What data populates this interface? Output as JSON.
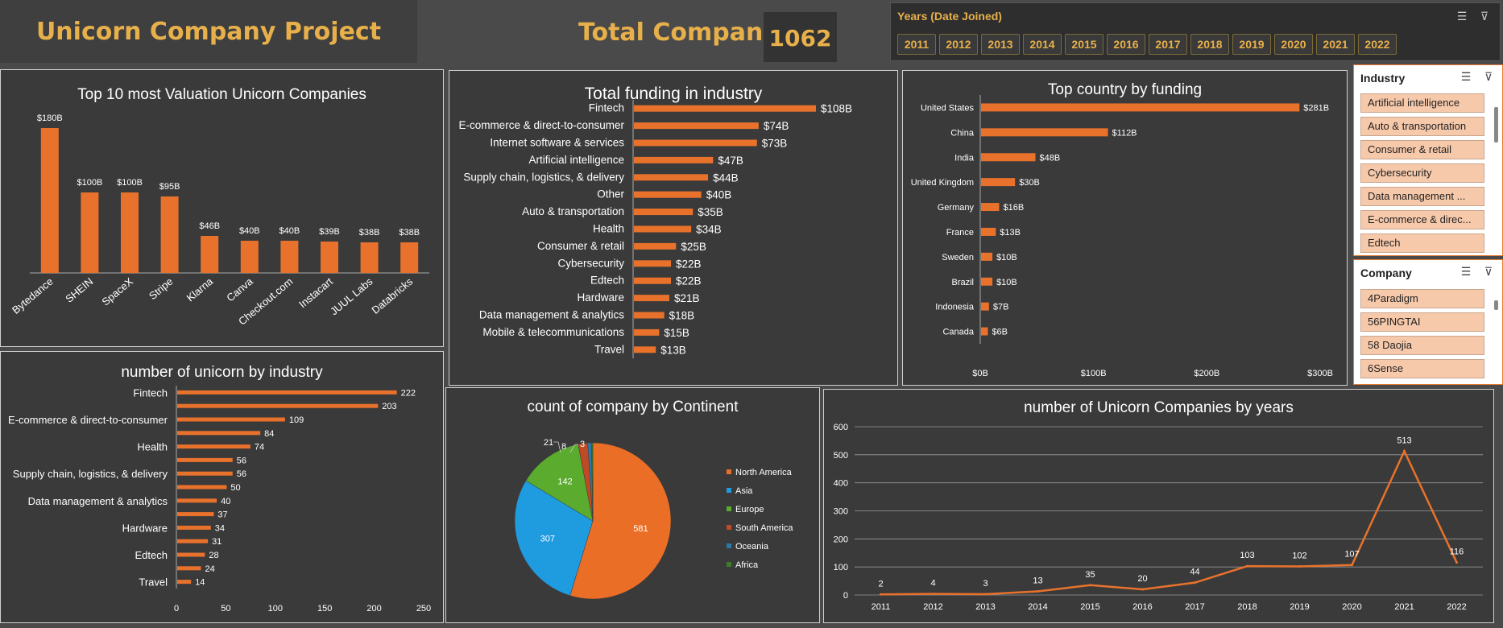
{
  "header": {
    "project_title": "Unicorn Company Project",
    "total_label": "Total Company",
    "total_value": "1062"
  },
  "years_slicer": {
    "title": "Years (Date Joined)",
    "years": [
      "2011",
      "2012",
      "2013",
      "2014",
      "2015",
      "2016",
      "2017",
      "2018",
      "2019",
      "2020",
      "2021",
      "2022"
    ]
  },
  "industry_slicer": {
    "title": "Industry",
    "items": [
      "Artificial intelligence",
      "Auto & transportation",
      "Consumer & retail",
      "Cybersecurity",
      "Data management ...",
      "E-commerce & direc...",
      "Edtech"
    ]
  },
  "company_slicer": {
    "title": "Company",
    "items": [
      "4Paradigm",
      "56PINGTAI",
      "58 Daojia",
      "6Sense"
    ]
  },
  "colors": {
    "accent": "#e8722c",
    "gold": "#e8b04a",
    "panel": "#3a3a3a",
    "background": "#4a4a4a"
  },
  "chart_data": [
    {
      "id": "top10",
      "type": "bar",
      "title": "Top 10 most Valuation Unicorn Companies",
      "categories": [
        "Bytedance",
        "SHEIN",
        "SpaceX",
        "Stripe",
        "Klarna",
        "Canva",
        "Checkout.com",
        "Instacart",
        "JUUL Labs",
        "Databricks"
      ],
      "values": [
        180,
        100,
        100,
        95,
        46,
        40,
        40,
        39,
        38,
        38
      ],
      "labels": [
        "$180B",
        "$100B",
        "$100B",
        "$95B",
        "$46B",
        "$40B",
        "$40B",
        "$39B",
        "$38B",
        "$38B"
      ],
      "ylim": [
        0,
        200
      ]
    },
    {
      "id": "funding",
      "type": "bar",
      "title": "Total funding in industry",
      "categories": [
        "Fintech",
        "E-commerce & direct-to-consumer",
        "Internet software & services",
        "Artificial intelligence",
        "Supply chain, logistics, & delivery",
        "Other",
        "Auto & transportation",
        "Health",
        "Consumer & retail",
        "Cybersecurity",
        "Edtech",
        "Hardware",
        "Data management & analytics",
        "Mobile & telecommunications",
        "Travel"
      ],
      "values": [
        108,
        74,
        73,
        47,
        44,
        40,
        35,
        34,
        25,
        22,
        22,
        21,
        18,
        15,
        13
      ],
      "labels": [
        "$108B",
        "$74B",
        "$73B",
        "$47B",
        "$44B",
        "$40B",
        "$35B",
        "$34B",
        "$25B",
        "$22B",
        "$22B",
        "$21B",
        "$18B",
        "$15B",
        "$13B"
      ],
      "xlim": [
        0,
        120
      ]
    },
    {
      "id": "country",
      "type": "bar",
      "title": "Top country by funding",
      "categories": [
        "United States",
        "China",
        "India",
        "United Kingdom",
        "Germany",
        "France",
        "Sweden",
        "Brazil",
        "Indonesia",
        "Canada"
      ],
      "values": [
        281,
        112,
        48,
        30,
        16,
        13,
        10,
        10,
        7,
        6
      ],
      "labels": [
        "$281B",
        "$112B",
        "$48B",
        "$30B",
        "$16B",
        "$13B",
        "$10B",
        "$10B",
        "$7B",
        "$6B"
      ],
      "xlim": [
        0,
        300
      ],
      "xticks": [
        "$0B",
        "$100B",
        "$200B",
        "$300B"
      ]
    },
    {
      "id": "industry_count",
      "type": "bar",
      "title": "number of unicorn by industry",
      "categories": [
        "Fintech",
        "",
        "E-commerce & direct-to-consumer",
        "",
        "Health",
        "",
        "Supply chain, logistics, & delivery",
        "",
        "Data management & analytics",
        "",
        "Hardware",
        "",
        "Edtech",
        "",
        "Travel"
      ],
      "values": [
        222,
        203,
        109,
        84,
        74,
        56,
        56,
        50,
        40,
        37,
        34,
        31,
        28,
        24,
        14
      ],
      "xlim": [
        0,
        250
      ],
      "xticks": [
        "0",
        "50",
        "100",
        "150",
        "200",
        "250"
      ]
    },
    {
      "id": "continent",
      "type": "pie",
      "title": "count of company by Continent",
      "categories": [
        "North America",
        "Asia",
        "Europe",
        "South America",
        "Oceania",
        "Africa"
      ],
      "values": [
        581,
        307,
        142,
        21,
        8,
        3
      ],
      "colors": [
        "#ea6e25",
        "#1f9be0",
        "#5aab2e",
        "#c04a25",
        "#2a7aa8",
        "#3c7d28"
      ]
    },
    {
      "id": "years",
      "type": "line",
      "title": "number of Unicorn Companies by years",
      "x": [
        "2011",
        "2012",
        "2013",
        "2014",
        "2015",
        "2016",
        "2017",
        "2018",
        "2019",
        "2020",
        "2021",
        "2022"
      ],
      "values": [
        2,
        4,
        3,
        13,
        35,
        20,
        44,
        103,
        102,
        107,
        513,
        116
      ],
      "ylim": [
        0,
        600
      ],
      "yticks": [
        "0",
        "100",
        "200",
        "300",
        "400",
        "500",
        "600"
      ]
    }
  ]
}
